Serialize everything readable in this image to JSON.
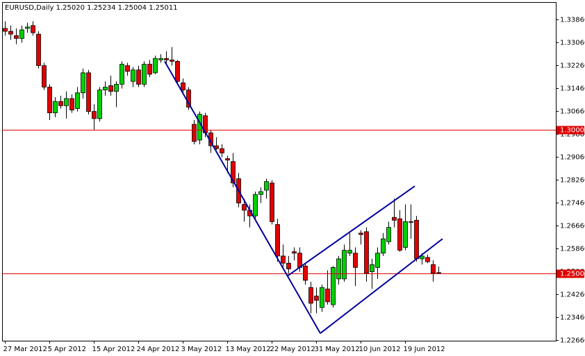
{
  "chart_data": {
    "type": "candlestick",
    "title": "EURUSD,Daily  1.25020 1.25234 1.25004 1.25011",
    "categories": [
      "27 Mar 2012",
      null,
      null,
      null,
      null,
      null,
      null,
      null,
      "5 Apr 2012",
      null,
      null,
      null,
      null,
      null,
      null,
      null,
      "15 Apr 2012",
      null,
      null,
      null,
      null,
      null,
      null,
      null,
      "24 Apr 2012",
      null,
      null,
      null,
      null,
      null,
      null,
      null,
      "3 May 2012",
      null,
      null,
      null,
      null,
      null,
      null,
      null,
      "13 May 2012",
      null,
      null,
      null,
      null,
      null,
      null,
      null,
      "22 May 2012",
      null,
      null,
      null,
      null,
      null,
      null,
      null,
      "31 May 2012",
      null,
      null,
      null,
      null,
      null,
      null,
      null,
      "10 Jun 2012",
      null,
      null,
      null,
      null,
      null,
      null,
      null,
      "19 Jun 2012",
      null,
      null,
      null,
      null,
      null,
      null
    ],
    "open": [
      1.3355,
      1.3345,
      1.333,
      1.332,
      1.3355,
      1.3365,
      1.3335,
      1.3225,
      1.315,
      1.306,
      1.31,
      1.3085,
      1.311,
      1.3075,
      1.313,
      1.32,
      1.3065,
      1.304,
      1.314,
      1.3155,
      1.3135,
      1.316,
      1.3225,
      1.317,
      1.321,
      1.316,
      1.323,
      1.32,
      1.3245,
      1.325,
      1.3245,
      1.324,
      1.3165,
      1.314,
      1.302,
      1.2965,
      1.305,
      1.299,
      1.2945,
      1.2935,
      1.29,
      1.289,
      1.283,
      1.274,
      1.272,
      1.27,
      1.2775,
      1.279,
      1.2815,
      1.267,
      1.256,
      1.2535,
      1.2575,
      1.257,
      1.2525,
      1.245,
      1.242,
      1.238,
      1.2445,
      1.239,
      1.248,
      1.248,
      1.257,
      1.257,
      1.264,
      1.2645,
      1.2505,
      1.252,
      1.257,
      1.261,
      1.2695,
      1.269,
      1.259,
      1.268,
      1.2685,
      1.255,
      1.2555,
      1.253,
      1.2502
    ],
    "high": [
      1.338,
      1.3365,
      1.3355,
      1.3365,
      1.3375,
      1.338,
      1.3345,
      1.3235,
      1.316,
      1.3115,
      1.312,
      1.3135,
      1.3125,
      1.315,
      1.3215,
      1.321,
      1.309,
      1.315,
      1.317,
      1.319,
      1.317,
      1.324,
      1.3235,
      1.322,
      1.3225,
      1.324,
      1.3245,
      1.326,
      1.3265,
      1.3275,
      1.329,
      1.3245,
      1.318,
      1.315,
      1.3035,
      1.3065,
      1.306,
      1.3,
      1.2975,
      1.295,
      1.291,
      1.292,
      1.285,
      1.276,
      1.274,
      1.2785,
      1.28,
      1.283,
      1.2825,
      1.269,
      1.26,
      1.256,
      1.259,
      1.259,
      1.2535,
      1.247,
      1.245,
      1.246,
      1.251,
      1.2525,
      1.256,
      1.26,
      1.264,
      1.259,
      1.265,
      1.266,
      1.255,
      1.259,
      1.264,
      1.268,
      1.276,
      1.272,
      1.274,
      1.274,
      1.27,
      1.257,
      1.2565,
      1.2545,
      1.2523
    ],
    "low": [
      1.333,
      1.3315,
      1.33,
      1.3305,
      1.334,
      1.333,
      1.3215,
      1.314,
      1.3035,
      1.3045,
      1.3075,
      1.304,
      1.306,
      1.3065,
      1.311,
      1.3055,
      1.3,
      1.303,
      1.312,
      1.312,
      1.308,
      1.3145,
      1.319,
      1.315,
      1.315,
      1.315,
      1.3185,
      1.3195,
      1.3235,
      1.323,
      1.3225,
      1.316,
      1.3125,
      1.307,
      1.295,
      1.295,
      1.2975,
      1.292,
      1.293,
      1.2905,
      1.285,
      1.28,
      1.273,
      1.268,
      1.266,
      1.269,
      1.2745,
      1.276,
      1.267,
      1.254,
      1.2515,
      1.25,
      1.2545,
      1.2505,
      1.246,
      1.236,
      1.236,
      1.2365,
      1.239,
      1.238,
      1.246,
      1.247,
      1.256,
      1.2455,
      1.26,
      1.247,
      1.2445,
      1.248,
      1.256,
      1.26,
      1.266,
      1.2575,
      1.258,
      1.262,
      1.254,
      1.253,
      1.2535,
      1.247,
      1.25
    ],
    "close": [
      1.3345,
      1.3335,
      1.332,
      1.335,
      1.336,
      1.334,
      1.3225,
      1.315,
      1.306,
      1.31,
      1.3085,
      1.311,
      1.307,
      1.313,
      1.32,
      1.3065,
      1.304,
      1.314,
      1.315,
      1.3135,
      1.316,
      1.323,
      1.3205,
      1.321,
      1.316,
      1.323,
      1.3195,
      1.325,
      1.325,
      1.3245,
      1.324,
      1.317,
      1.314,
      1.308,
      1.296,
      1.3055,
      1.299,
      1.2945,
      1.2935,
      1.292,
      1.2895,
      1.2815,
      1.2745,
      1.272,
      1.27,
      1.2775,
      1.2785,
      1.282,
      1.268,
      1.256,
      1.2535,
      1.2515,
      1.257,
      1.252,
      1.2475,
      1.2395,
      1.2405,
      1.245,
      1.24,
      1.252,
      1.255,
      1.258,
      1.258,
      1.252,
      1.2635,
      1.25,
      1.253,
      1.257,
      1.262,
      1.266,
      1.2685,
      1.258,
      1.268,
      1.2679,
      1.255,
      1.256,
      1.254,
      1.25,
      1.2501
    ],
    "up_color": "#00d000",
    "down_color": "#e00000",
    "ylim": [
      1.2264,
      1.3447
    ],
    "yticks": [
      {
        "value": 1.3386,
        "label": "1.33860"
      },
      {
        "value": 1.3306,
        "label": "1.33060"
      },
      {
        "value": 1.3226,
        "label": "1.32260"
      },
      {
        "value": 1.3146,
        "label": "1.31460"
      },
      {
        "value": 1.3066,
        "label": "1.30660"
      },
      {
        "value": 1.2986,
        "label": "1.29860"
      },
      {
        "value": 1.2906,
        "label": "1.29060"
      },
      {
        "value": 1.2826,
        "label": "1.28260"
      },
      {
        "value": 1.2746,
        "label": "1.27460"
      },
      {
        "value": 1.2666,
        "label": "1.26660"
      },
      {
        "value": 1.2586,
        "label": "1.25860"
      },
      {
        "value": 1.2506,
        "label": "1.25060"
      },
      {
        "value": 1.2426,
        "label": "1.24260"
      },
      {
        "value": 1.2346,
        "label": "1.23460"
      },
      {
        "value": 1.2266,
        "label": "1.22660"
      }
    ],
    "hlines": [
      {
        "value": 1.3,
        "label": "1.30000",
        "color": "#e00000"
      },
      {
        "value": 1.25,
        "label": "1.25000",
        "color": "#e00000"
      }
    ],
    "trendlines": [
      {
        "x": [
          28.75,
          56.75
        ],
        "y": [
          1.324,
          1.229
        ],
        "color": "#00009c"
      },
      {
        "x": [
          56.75,
          78.75
        ],
        "y": [
          1.229,
          1.262
        ],
        "color": "#00009c"
      },
      {
        "x": [
          50.75,
          73.75
        ],
        "y": [
          1.2489,
          1.2804
        ],
        "color": "#00009c"
      }
    ]
  }
}
